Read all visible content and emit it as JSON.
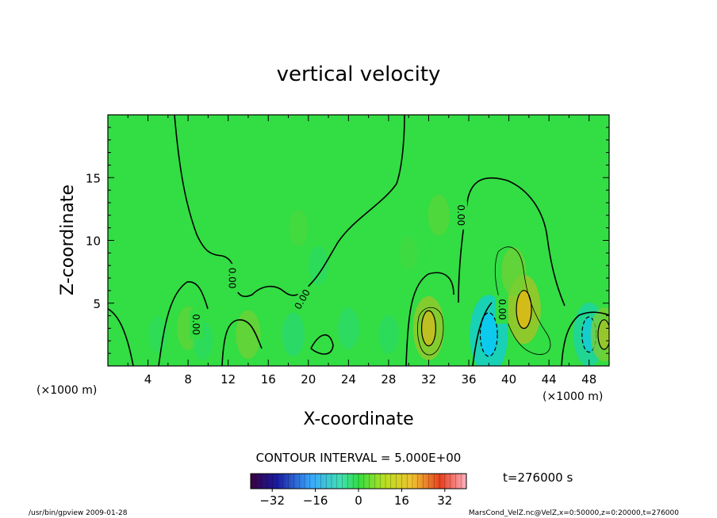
{
  "chart_data": {
    "type": "heatmap",
    "title": "vertical velocity",
    "xlabel": "X-coordinate",
    "ylabel": "Z-coordinate",
    "x_unit_left": "(×1000 m)",
    "x_unit_right": "(×1000 m)",
    "xlim": [
      0,
      50
    ],
    "ylim": [
      0,
      20
    ],
    "xticks": [
      4,
      8,
      12,
      16,
      20,
      24,
      28,
      32,
      36,
      40,
      44,
      48
    ],
    "yticks": [
      5,
      10,
      15
    ],
    "contour_interval_text": "CONTOUR INTERVAL = 5.000E+00",
    "contour_labels": [
      {
        "text": "0.00",
        "x": 12.4,
        "z": 7.0,
        "angle": 90
      },
      {
        "text": "0.00",
        "x": 8.8,
        "z": 3.3,
        "angle": 90
      },
      {
        "text": "0.00",
        "x": 19.4,
        "z": 5.3,
        "angle": -60
      },
      {
        "text": "0.00",
        "x": 35.2,
        "z": 12.0,
        "angle": 90
      },
      {
        "text": "0.00",
        "x": 39.3,
        "z": 4.5,
        "angle": 90
      }
    ],
    "time_text": "t=276000 s",
    "colorbar": {
      "min": -40,
      "max": 40,
      "tick_values": [
        -32,
        -16,
        0,
        16,
        32
      ],
      "tick_labels": [
        "−32",
        "−16",
        "0",
        "16",
        "32"
      ]
    },
    "cells": [
      {
        "x": 8,
        "z": 3,
        "w": 3
      },
      {
        "x": 14,
        "z": 2.5,
        "w": 4
      },
      {
        "x": 9.5,
        "z": 2,
        "w": -2
      },
      {
        "x": 5,
        "z": 2.5,
        "w": -1.5
      },
      {
        "x": 18.5,
        "z": 2.5,
        "w": -3
      },
      {
        "x": 32,
        "z": 3,
        "w": 7
      },
      {
        "x": 38,
        "z": 2.5,
        "w": -10
      },
      {
        "x": 41.5,
        "z": 4.5,
        "w": 8
      },
      {
        "x": 40.5,
        "z": 7.5,
        "w": 4
      },
      {
        "x": 48,
        "z": 2.5,
        "w": -7
      },
      {
        "x": 49.5,
        "z": 2.5,
        "w": 5
      },
      {
        "x": 24,
        "z": 3,
        "w": -2.5
      },
      {
        "x": 28,
        "z": 2.5,
        "w": -2
      },
      {
        "x": 21,
        "z": 8,
        "w": -2
      },
      {
        "x": 33,
        "z": 12,
        "w": 2.5
      },
      {
        "x": 30,
        "z": 9,
        "w": 1
      },
      {
        "x": 19,
        "z": 11,
        "w": 1.5
      }
    ]
  },
  "footer": {
    "left": "/usr/bin/gpview   2009-01-28",
    "right": "MarsCond_VelZ.nc@VelZ,x=0:50000,z=0:20000,t=276000"
  }
}
